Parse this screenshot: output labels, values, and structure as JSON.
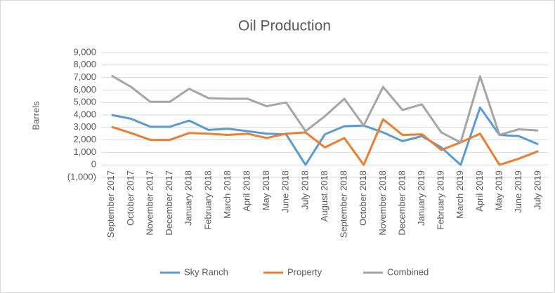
{
  "chart_data": {
    "type": "line",
    "title": "Oil Production",
    "y_label": "Barrels",
    "categories": [
      "September 2017",
      "October 2017",
      "November 2017",
      "December 2017",
      "January 2018",
      "February 2018",
      "March 2018",
      "April 2018",
      "May 2018",
      "June 2018",
      "July 2018",
      "August 2018",
      "September 2018",
      "October 2018",
      "November 2018",
      "December 2018",
      "January 2019",
      "February 2019",
      "March 2019",
      "April 2019",
      "May 2019",
      "June 2019",
      "July 2019"
    ],
    "series": [
      {
        "name": "Sky Ranch",
        "color": "#5b9bd5",
        "values": [
          4000,
          3700,
          3050,
          3050,
          3550,
          2800,
          2900,
          2700,
          2500,
          2450,
          0,
          2450,
          3100,
          3150,
          2600,
          1900,
          2300,
          1400,
          0,
          4600,
          2400,
          2300,
          1650
        ]
      },
      {
        "name": "Property",
        "color": "#ed7d31",
        "values": [
          3050,
          2550,
          2000,
          2000,
          2550,
          2500,
          2400,
          2500,
          2150,
          2500,
          2600,
          1400,
          2150,
          0,
          3650,
          2400,
          2450,
          1200,
          1800,
          2500,
          0,
          500,
          1100
        ]
      },
      {
        "name": "Combined",
        "color": "#a5a5a5",
        "values": [
          7150,
          6250,
          5050,
          5050,
          6100,
          5350,
          5300,
          5300,
          4700,
          5000,
          2700,
          3900,
          5300,
          3150,
          6250,
          4400,
          4850,
          2600,
          1800,
          7100,
          2400,
          2850,
          2750
        ]
      }
    ],
    "ylim": [
      -1000,
      9000
    ],
    "yticks": [
      {
        "value": -1000,
        "label": "(1,000)"
      },
      0,
      {
        "value": 1000,
        "label": "1,000"
      },
      {
        "value": 2000,
        "label": "2,000"
      },
      {
        "value": 3000,
        "label": "3,000"
      },
      {
        "value": 4000,
        "label": "4,000"
      },
      {
        "value": 5000,
        "label": "5,000"
      },
      {
        "value": 6000,
        "label": "6,000"
      },
      {
        "value": 7000,
        "label": "7,000"
      },
      {
        "value": 8000,
        "label": "8,000"
      },
      {
        "value": 9000,
        "label": "9,000"
      }
    ],
    "grid": true,
    "legend": "bottom"
  }
}
